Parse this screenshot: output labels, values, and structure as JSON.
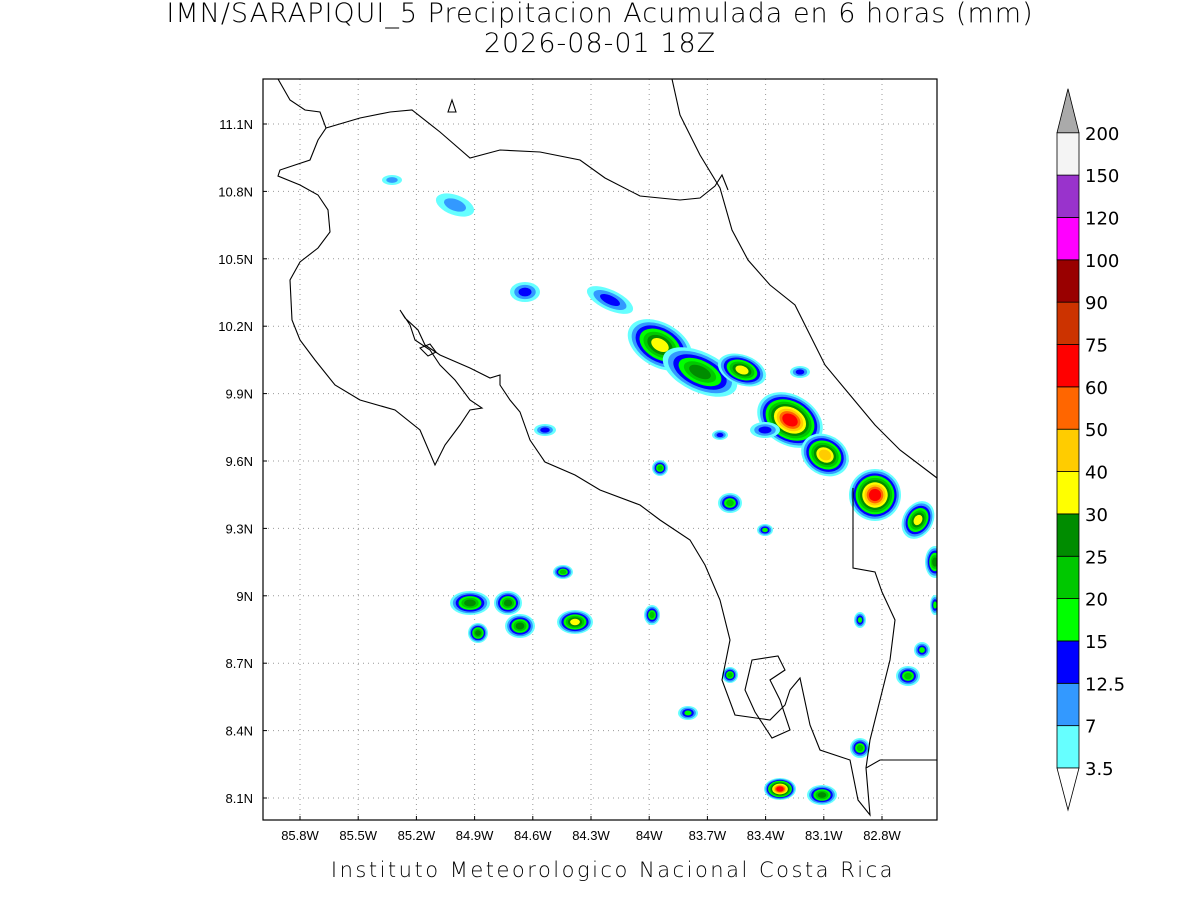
{
  "title": "IMN/SARAPIQUI_5 Precipitacion Acumulada en 6 horas (mm)",
  "subtitle": "2026-08-01 18Z",
  "map": {
    "lon_ticks": [
      "85.8W",
      "85.5W",
      "85.2W",
      "84.9W",
      "84.6W",
      "84.3W",
      "84W",
      "83.7W",
      "83.4W",
      "83.1W",
      "82.8W"
    ],
    "lat_ticks": [
      "11.1N",
      "10.8N",
      "10.5N",
      "10.2N",
      "9.9N",
      "9.6N",
      "9.3N",
      "9N",
      "8.7N",
      "8.4N",
      "8.1N"
    ],
    "grid": true
  },
  "colorbar": {
    "levels": [
      3.5,
      7,
      12.5,
      15,
      20,
      25,
      30,
      40,
      50,
      60,
      75,
      90,
      100,
      120,
      150,
      200
    ],
    "colors": [
      "#66ffff",
      "#3399ff",
      "#0000ff",
      "#00ff00",
      "#00c800",
      "#008c00",
      "#ffff00",
      "#ffcc00",
      "#ff6600",
      "#ff0000",
      "#cc3300",
      "#990000",
      "#ff00ff",
      "#9933cc",
      "#f4f4f4"
    ],
    "under_color": "#ffffff",
    "over_color": "#aaaaaa"
  },
  "footer": "Instituto Meteorologico Nacional Costa Rica"
}
